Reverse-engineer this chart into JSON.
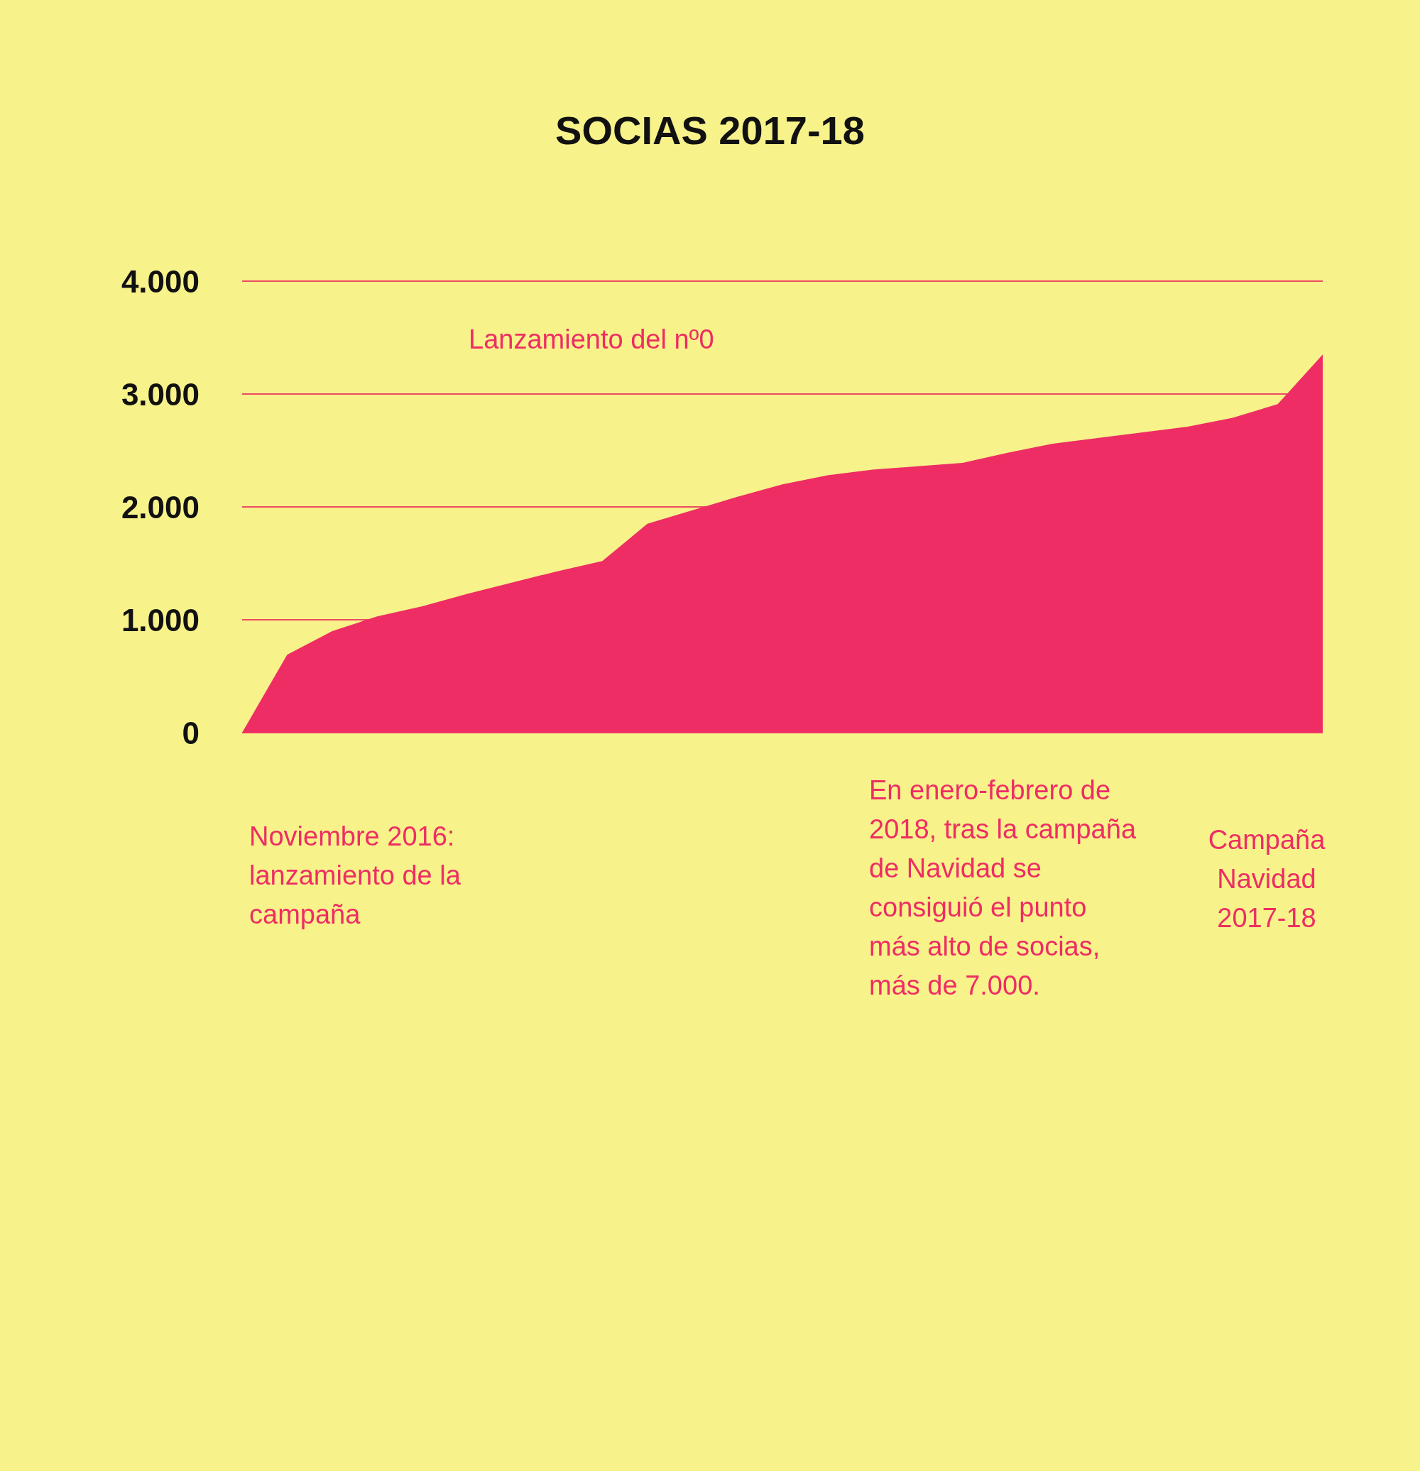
{
  "chart_data": {
    "type": "area",
    "title": "SOCIAS 2017-18",
    "categories": [
      null,
      null,
      null,
      null,
      null,
      null,
      null,
      null,
      null,
      null,
      null,
      null,
      null,
      null,
      null,
      null,
      null,
      null,
      null,
      null,
      null,
      null,
      null,
      null,
      null
    ],
    "values": [
      0,
      690,
      900,
      1030,
      1120,
      1230,
      1330,
      1430,
      1520,
      1850,
      1970,
      2090,
      2200,
      2280,
      2330,
      2360,
      2390,
      2480,
      2560,
      2610,
      2660,
      2710,
      2790,
      2910,
      3350
    ],
    "color": "#ee2d64",
    "ylim": [
      0,
      4000
    ],
    "yticks": [
      0,
      {
        "value": 1000,
        "label": "1.000"
      },
      {
        "value": 2000,
        "label": "2.000"
      },
      {
        "value": 3000,
        "label": "3.000"
      },
      {
        "value": 4000,
        "label": "4.000"
      }
    ],
    "grid": "y",
    "tick_labels": "y",
    "annotations": [
      "Lanzamiento del nº0",
      "Noviembre 2016:\nlanzamiento de la\ncampaña",
      "En enero-febrero de\n2018, tras la campaña\nde Navidad se\nconsiguió el punto\nmás alto de socias,\nmás de 7.000.",
      "Campaña\nNavidad\n2017-18"
    ]
  }
}
